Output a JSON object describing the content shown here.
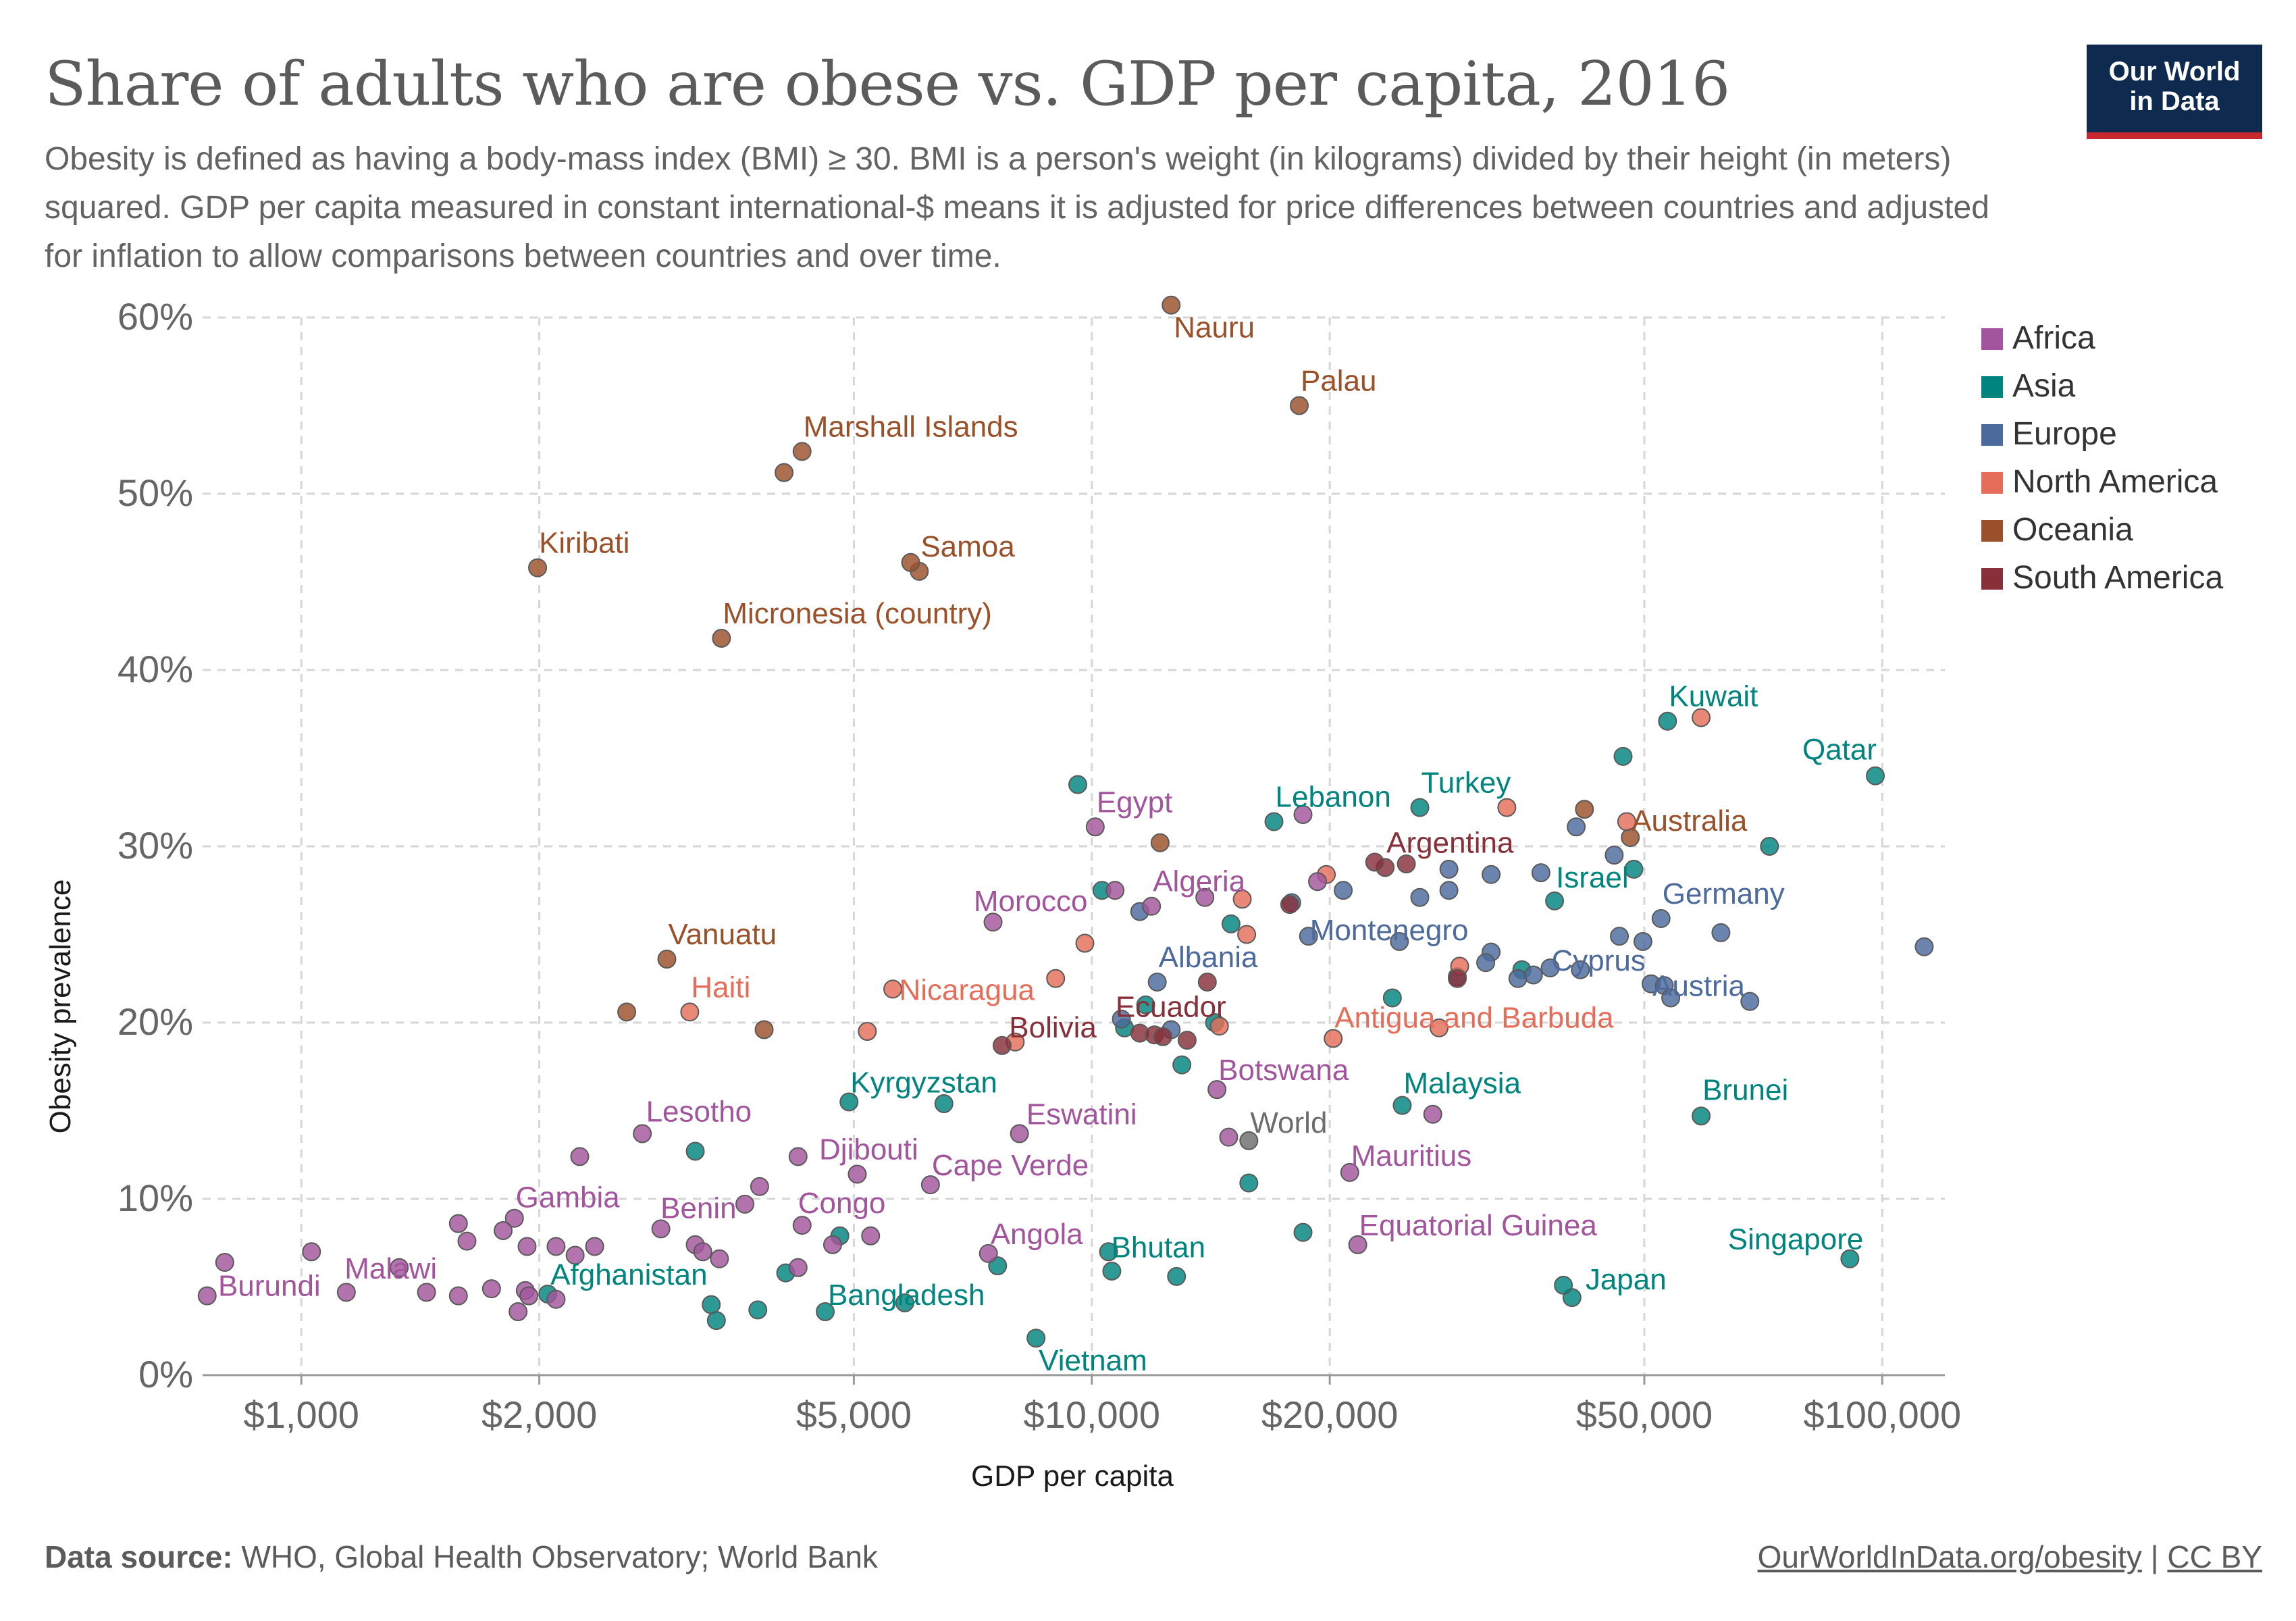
{
  "title": "Share of adults who are obese vs. GDP per capita, 2016",
  "subtitle": "Obesity is defined as having a body-mass index (BMI) ≥ 30. BMI is a person's weight (in kilograms) divided by their height (in meters) squared. GDP per capita measured in constant international-$ means it is adjusted for price differences between countries and adjusted for inflation to allow comparisons between countries and over time.",
  "logo": {
    "line1": "Our World",
    "line2": "in Data"
  },
  "footer": {
    "source_label": "Data source:",
    "source_text": "WHO, Global Health Observatory; World Bank",
    "link": "OurWorldInData.org/obesity",
    "separator": "|",
    "license": "CC BY"
  },
  "colors": {
    "Africa": "#a2559c",
    "Asia": "#00847e",
    "Europe": "#4c6a9c",
    "North America": "#e56e5a",
    "Oceania": "#9a5129",
    "South America": "#883039",
    "World": "#6d6d6d"
  },
  "chart_data": {
    "type": "scatter",
    "xlabel": "GDP per capita",
    "ylabel": "Obesity prevalence",
    "x_scale": "log",
    "xlim": [
      750,
      120000
    ],
    "ylim": [
      0,
      60
    ],
    "x_ticks": [
      {
        "value": 1000,
        "label": "$1,000"
      },
      {
        "value": 2000,
        "label": "$2,000"
      },
      {
        "value": 5000,
        "label": "$5,000"
      },
      {
        "value": 10000,
        "label": "$10,000"
      },
      {
        "value": 20000,
        "label": "$20,000"
      },
      {
        "value": 50000,
        "label": "$50,000"
      },
      {
        "value": 100000,
        "label": "$100,000"
      }
    ],
    "y_ticks": [
      {
        "value": 0,
        "label": "0%"
      },
      {
        "value": 10,
        "label": "10%"
      },
      {
        "value": 20,
        "label": "20%"
      },
      {
        "value": 30,
        "label": "30%"
      },
      {
        "value": 40,
        "label": "40%"
      },
      {
        "value": 50,
        "label": "50%"
      },
      {
        "value": 60,
        "label": "60%"
      }
    ],
    "grid": true,
    "legend_position": "right",
    "legend": [
      "Africa",
      "Asia",
      "Europe",
      "North America",
      "Oceania",
      "South America"
    ],
    "points": [
      {
        "name": "Nauru",
        "region": "Oceania",
        "x": 12600,
        "y": 60.7,
        "label": true
      },
      {
        "name": "Palau",
        "region": "Oceania",
        "x": 18300,
        "y": 55.0,
        "label": true
      },
      {
        "name": "Marshall Islands",
        "region": "Oceania",
        "x": 4300,
        "y": 52.4,
        "label": true
      },
      {
        "region": "Oceania",
        "x": 4080,
        "y": 51.2
      },
      {
        "name": "Kiribati",
        "region": "Oceania",
        "x": 1990,
        "y": 45.8,
        "label": true
      },
      {
        "name": "Samoa",
        "region": "Oceania",
        "x": 6050,
        "y": 45.6,
        "label": true
      },
      {
        "region": "Oceania",
        "x": 5900,
        "y": 46.1
      },
      {
        "name": "Micronesia (country)",
        "region": "Oceania",
        "x": 3400,
        "y": 41.8,
        "label": true
      },
      {
        "name": "Vanuatu",
        "region": "Oceania",
        "x": 2900,
        "y": 23.6,
        "label": true
      },
      {
        "region": "Oceania",
        "x": 2580,
        "y": 20.6
      },
      {
        "region": "Oceania",
        "x": 3850,
        "y": 19.6
      },
      {
        "region": "Oceania",
        "x": 12200,
        "y": 30.2
      },
      {
        "name": "Australia",
        "region": "Oceania",
        "x": 48000,
        "y": 30.5,
        "label": true
      },
      {
        "region": "Oceania",
        "x": 42000,
        "y": 32.1
      },
      {
        "name": "Kuwait",
        "region": "Asia",
        "x": 53500,
        "y": 37.1,
        "label": true
      },
      {
        "region": "Asia",
        "x": 47000,
        "y": 35.1
      },
      {
        "name": "Qatar",
        "region": "Asia",
        "x": 98000,
        "y": 34.0,
        "label": true
      },
      {
        "name": "Lebanon",
        "region": "Asia",
        "x": 17000,
        "y": 31.4,
        "label": true
      },
      {
        "name": "Turkey",
        "region": "Asia",
        "x": 26000,
        "y": 32.2,
        "label": true
      },
      {
        "region": "Asia",
        "x": 9600,
        "y": 33.5
      },
      {
        "region": "Asia",
        "x": 72000,
        "y": 30.0
      },
      {
        "region": "Asia",
        "x": 48500,
        "y": 28.7
      },
      {
        "name": "Israel",
        "region": "Asia",
        "x": 38500,
        "y": 26.9,
        "label": true
      },
      {
        "region": "Asia",
        "x": 10300,
        "y": 27.5
      },
      {
        "region": "Asia",
        "x": 15000,
        "y": 25.6
      },
      {
        "region": "Asia",
        "x": 35000,
        "y": 23.0
      },
      {
        "region": "Asia",
        "x": 24000,
        "y": 21.4
      },
      {
        "region": "Asia",
        "x": 11700,
        "y": 21.0
      },
      {
        "region": "Asia",
        "x": 11000,
        "y": 19.7
      },
      {
        "region": "Asia",
        "x": 14300,
        "y": 20.0
      },
      {
        "region": "Asia",
        "x": 13000,
        "y": 17.6
      },
      {
        "name": "Kyrgyzstan",
        "region": "Asia",
        "x": 4930,
        "y": 15.5,
        "label": true
      },
      {
        "region": "Asia",
        "x": 6500,
        "y": 15.4
      },
      {
        "name": "Malaysia",
        "region": "Asia",
        "x": 24700,
        "y": 15.3,
        "label": true
      },
      {
        "name": "Brunei",
        "region": "Asia",
        "x": 59000,
        "y": 14.7,
        "label": true
      },
      {
        "region": "Asia",
        "x": 3150,
        "y": 12.7
      },
      {
        "region": "Asia",
        "x": 15800,
        "y": 10.9
      },
      {
        "region": "Asia",
        "x": 18500,
        "y": 8.1
      },
      {
        "region": "Asia",
        "x": 4800,
        "y": 7.9
      },
      {
        "name": "Bhutan",
        "region": "Asia",
        "x": 10500,
        "y": 7.0,
        "label": true
      },
      {
        "region": "Asia",
        "x": 10600,
        "y": 5.9
      },
      {
        "region": "Asia",
        "x": 12800,
        "y": 5.6
      },
      {
        "region": "Asia",
        "x": 7600,
        "y": 6.2
      },
      {
        "region": "Asia",
        "x": 4100,
        "y": 5.8
      },
      {
        "name": "Afghanistan",
        "region": "Asia",
        "x": 2050,
        "y": 4.6,
        "label": true
      },
      {
        "region": "Asia",
        "x": 3300,
        "y": 4.0
      },
      {
        "region": "Asia",
        "x": 3350,
        "y": 3.1
      },
      {
        "region": "Asia",
        "x": 3780,
        "y": 3.7
      },
      {
        "name": "Bangladesh",
        "region": "Asia",
        "x": 4600,
        "y": 3.6,
        "label": true
      },
      {
        "region": "Asia",
        "x": 5800,
        "y": 4.1
      },
      {
        "name": "Vietnam",
        "region": "Asia",
        "x": 8500,
        "y": 2.1,
        "label": true
      },
      {
        "name": "Singapore",
        "region": "Asia",
        "x": 91000,
        "y": 6.6,
        "label": true
      },
      {
        "name": "Japan",
        "region": "Asia",
        "x": 40500,
        "y": 4.4,
        "label": true
      },
      {
        "region": "Asia",
        "x": 39500,
        "y": 5.1
      },
      {
        "name": "Montenegro",
        "region": "Europe",
        "x": 18800,
        "y": 24.9,
        "label": true
      },
      {
        "region": "Europe",
        "x": 17900,
        "y": 26.8
      },
      {
        "region": "Europe",
        "x": 20800,
        "y": 27.5
      },
      {
        "region": "Europe",
        "x": 26000,
        "y": 27.1
      },
      {
        "region": "Europe",
        "x": 28300,
        "y": 28.7
      },
      {
        "region": "Europe",
        "x": 28300,
        "y": 27.5
      },
      {
        "region": "Europe",
        "x": 32000,
        "y": 28.4
      },
      {
        "region": "Europe",
        "x": 37000,
        "y": 28.5
      },
      {
        "region": "Europe",
        "x": 41000,
        "y": 31.1
      },
      {
        "region": "Europe",
        "x": 45800,
        "y": 29.5
      },
      {
        "name": "Germany",
        "region": "Europe",
        "x": 52500,
        "y": 25.9,
        "label": true
      },
      {
        "region": "Europe",
        "x": 46500,
        "y": 24.9
      },
      {
        "region": "Europe",
        "x": 49800,
        "y": 24.6
      },
      {
        "region": "Europe",
        "x": 62500,
        "y": 25.1
      },
      {
        "name": "Albania",
        "region": "Europe",
        "x": 12100,
        "y": 22.3,
        "label": true
      },
      {
        "region": "Europe",
        "x": 11500,
        "y": 26.3
      },
      {
        "region": "Europe",
        "x": 24500,
        "y": 24.6
      },
      {
        "region": "Europe",
        "x": 32000,
        "y": 24.0
      },
      {
        "region": "Europe",
        "x": 31500,
        "y": 23.4
      },
      {
        "region": "Europe",
        "x": 29000,
        "y": 22.6
      },
      {
        "region": "Europe",
        "x": 34600,
        "y": 22.5
      },
      {
        "region": "Europe",
        "x": 36200,
        "y": 22.7
      },
      {
        "name": "Cyprus",
        "region": "Europe",
        "x": 38000,
        "y": 23.1,
        "label": true
      },
      {
        "region": "Europe",
        "x": 41500,
        "y": 23.0
      },
      {
        "name": "Austria",
        "region": "Europe",
        "x": 51000,
        "y": 22.2,
        "label": true
      },
      {
        "region": "Europe",
        "x": 53000,
        "y": 22.1
      },
      {
        "region": "Europe",
        "x": 54000,
        "y": 21.4
      },
      {
        "region": "Europe",
        "x": 68000,
        "y": 21.2
      },
      {
        "region": "Europe",
        "x": 113000,
        "y": 24.3
      },
      {
        "region": "Europe",
        "x": 10900,
        "y": 20.2
      },
      {
        "region": "Europe",
        "x": 12600,
        "y": 19.6
      },
      {
        "name": "Nicaragua",
        "region": "North America",
        "x": 5600,
        "y": 21.9,
        "label": true
      },
      {
        "name": "Haiti",
        "region": "North America",
        "x": 3100,
        "y": 20.6,
        "label": true
      },
      {
        "region": "North America",
        "x": 5200,
        "y": 19.5
      },
      {
        "region": "North America",
        "x": 9000,
        "y": 22.5
      },
      {
        "region": "North America",
        "x": 9800,
        "y": 24.5
      },
      {
        "region": "North America",
        "x": 15500,
        "y": 27.0
      },
      {
        "region": "North America",
        "x": 15700,
        "y": 25.0
      },
      {
        "region": "North America",
        "x": 19800,
        "y": 28.4
      },
      {
        "region": "North America",
        "x": 33500,
        "y": 32.2
      },
      {
        "region": "North America",
        "x": 47500,
        "y": 31.4
      },
      {
        "region": "North America",
        "x": 59000,
        "y": 37.3
      },
      {
        "name": "Antigua and Barbuda",
        "region": "North America",
        "x": 20200,
        "y": 19.1,
        "label": true
      },
      {
        "region": "North America",
        "x": 27500,
        "y": 19.7
      },
      {
        "region": "North America",
        "x": 29200,
        "y": 23.2
      },
      {
        "region": "North America",
        "x": 8000,
        "y": 18.9
      },
      {
        "region": "North America",
        "x": 14500,
        "y": 19.8
      },
      {
        "name": "Argentina",
        "region": "South America",
        "x": 23500,
        "y": 28.8,
        "label": true
      },
      {
        "region": "South America",
        "x": 22800,
        "y": 29.1
      },
      {
        "region": "South America",
        "x": 25000,
        "y": 29.0
      },
      {
        "region": "South America",
        "x": 17800,
        "y": 26.7
      },
      {
        "region": "South America",
        "x": 14000,
        "y": 22.3
      },
      {
        "name": "Bolivia",
        "region": "South America",
        "x": 7700,
        "y": 18.7,
        "label": true
      },
      {
        "name": "Ecuador",
        "region": "South America",
        "x": 11500,
        "y": 19.4,
        "label": true
      },
      {
        "region": "South America",
        "x": 12000,
        "y": 19.3
      },
      {
        "region": "South America",
        "x": 12300,
        "y": 19.2
      },
      {
        "region": "South America",
        "x": 13200,
        "y": 19.0
      },
      {
        "region": "South America",
        "x": 29000,
        "y": 22.5
      },
      {
        "name": "Egypt",
        "region": "Africa",
        "x": 10100,
        "y": 31.1,
        "label": true
      },
      {
        "name": "Morocco",
        "region": "Africa",
        "x": 7500,
        "y": 25.7,
        "label": true
      },
      {
        "name": "Algeria",
        "region": "Africa",
        "x": 11900,
        "y": 26.6,
        "label": true
      },
      {
        "region": "Africa",
        "x": 10700,
        "y": 27.5
      },
      {
        "region": "Africa",
        "x": 13900,
        "y": 27.1
      },
      {
        "region": "Africa",
        "x": 18500,
        "y": 31.8
      },
      {
        "region": "Africa",
        "x": 19300,
        "y": 28.0
      },
      {
        "name": "Botswana",
        "region": "Africa",
        "x": 14400,
        "y": 16.2,
        "label": true
      },
      {
        "name": "Eswatini",
        "region": "Africa",
        "x": 8100,
        "y": 13.7,
        "label": true
      },
      {
        "name": "Mauritius",
        "region": "Africa",
        "x": 21200,
        "y": 11.5,
        "label": true
      },
      {
        "region": "Africa",
        "x": 27000,
        "y": 14.8
      },
      {
        "region": "Africa",
        "x": 14900,
        "y": 13.5
      },
      {
        "name": "Equatorial Guinea",
        "region": "Africa",
        "x": 21700,
        "y": 7.4,
        "label": true
      },
      {
        "name": "Angola",
        "region": "Africa",
        "x": 7400,
        "y": 6.9,
        "label": true
      },
      {
        "name": "Cape Verde",
        "region": "Africa",
        "x": 6250,
        "y": 10.8,
        "label": true
      },
      {
        "name": "Djibouti",
        "region": "Africa",
        "x": 4250,
        "y": 12.4,
        "label": true
      },
      {
        "region": "Africa",
        "x": 5050,
        "y": 11.4
      },
      {
        "region": "Africa",
        "x": 3800,
        "y": 10.7
      },
      {
        "region": "Africa",
        "x": 3640,
        "y": 9.7
      },
      {
        "name": "Lesotho",
        "region": "Africa",
        "x": 2700,
        "y": 13.7,
        "label": true
      },
      {
        "region": "Africa",
        "x": 2250,
        "y": 12.4
      },
      {
        "name": "Gambia",
        "region": "Africa",
        "x": 1860,
        "y": 8.9,
        "label": true
      },
      {
        "name": "Congo",
        "region": "Africa",
        "x": 4300,
        "y": 8.5,
        "label": true
      },
      {
        "region": "Africa",
        "x": 4700,
        "y": 7.4
      },
      {
        "region": "Africa",
        "x": 5250,
        "y": 7.9
      },
      {
        "name": "Benin",
        "region": "Africa",
        "x": 2850,
        "y": 8.3,
        "label": true
      },
      {
        "region": "Africa",
        "x": 3150,
        "y": 7.4
      },
      {
        "region": "Africa",
        "x": 3220,
        "y": 7.0
      },
      {
        "region": "Africa",
        "x": 3380,
        "y": 6.6
      },
      {
        "region": "Africa",
        "x": 4250,
        "y": 6.1
      },
      {
        "region": "Africa",
        "x": 1580,
        "y": 8.6
      },
      {
        "region": "Africa",
        "x": 1620,
        "y": 7.6
      },
      {
        "region": "Africa",
        "x": 1800,
        "y": 8.2
      },
      {
        "region": "Africa",
        "x": 1930,
        "y": 7.3
      },
      {
        "region": "Africa",
        "x": 2100,
        "y": 7.3
      },
      {
        "region": "Africa",
        "x": 2220,
        "y": 6.8
      },
      {
        "region": "Africa",
        "x": 2350,
        "y": 7.3
      },
      {
        "name": "Malawi",
        "region": "Africa",
        "x": 1330,
        "y": 6.1,
        "label": true
      },
      {
        "name": "Burundi",
        "region": "Africa",
        "x": 760,
        "y": 4.5,
        "label": true
      },
      {
        "region": "Africa",
        "x": 800,
        "y": 6.4
      },
      {
        "region": "Africa",
        "x": 1030,
        "y": 7.0
      },
      {
        "region": "Africa",
        "x": 1140,
        "y": 4.7
      },
      {
        "region": "Africa",
        "x": 1440,
        "y": 4.7
      },
      {
        "region": "Africa",
        "x": 1580,
        "y": 4.5
      },
      {
        "region": "Africa",
        "x": 1740,
        "y": 4.9
      },
      {
        "region": "Africa",
        "x": 1880,
        "y": 3.6
      },
      {
        "region": "Africa",
        "x": 1920,
        "y": 4.8
      },
      {
        "region": "Africa",
        "x": 1940,
        "y": 4.5
      },
      {
        "region": "Africa",
        "x": 2100,
        "y": 4.3
      },
      {
        "name": "World",
        "region": "World",
        "x": 15800,
        "y": 13.3,
        "label": true
      }
    ]
  }
}
